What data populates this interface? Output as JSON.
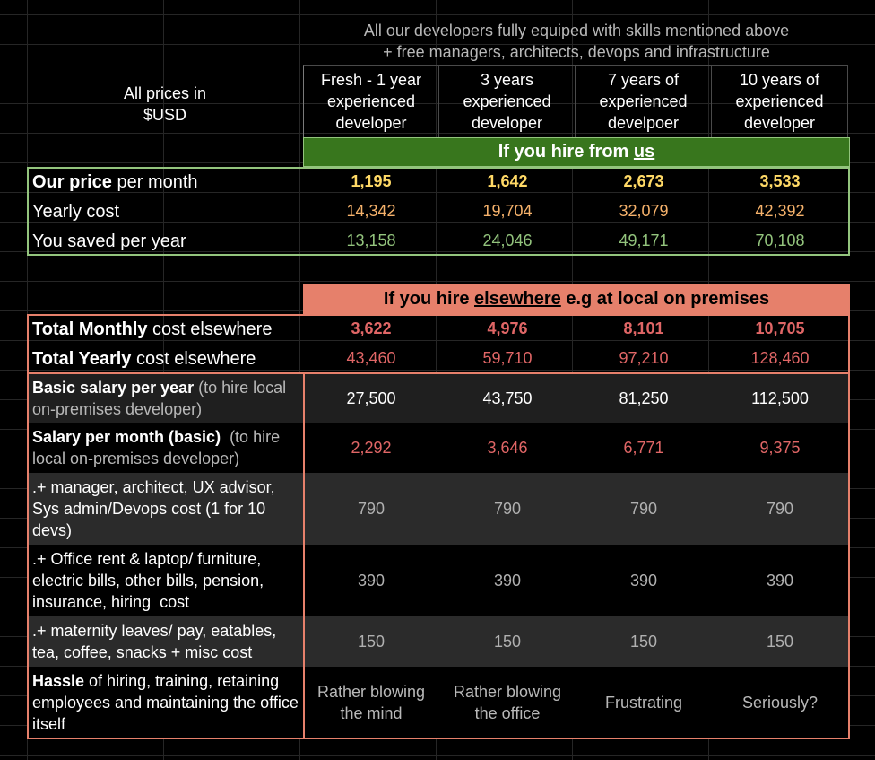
{
  "header": {
    "top_line1": "All our developers fully equiped with skills mentioned above",
    "top_line2": "+ free managers, architects, devops and infrastructure",
    "prices_label_line1": "All prices in",
    "prices_label_line2": "$USD",
    "columns": [
      {
        "line1": "Fresh - 1 year",
        "line2": "experienced",
        "line3": "developer"
      },
      {
        "line1": "3 years",
        "line2": "experienced",
        "line3": "developer"
      },
      {
        "line1": "7 years of",
        "line2": "experienced",
        "line3": "develpoer"
      },
      {
        "line1": "10 years of",
        "line2": "experienced",
        "line3": "developer"
      }
    ]
  },
  "us": {
    "banner_prefix": "If you hire from ",
    "banner_link": "us",
    "rows": [
      {
        "label_bold": "Our price",
        "label_rest": " per month",
        "values": [
          "1,195",
          "1,642",
          "2,673",
          "3,533"
        ]
      },
      {
        "label_bold": "",
        "label_rest": "Yearly cost",
        "values": [
          "14,342",
          "19,704",
          "32,079",
          "42,392"
        ]
      },
      {
        "label_bold": "",
        "label_rest": "You saved per year",
        "values": [
          "13,158",
          "24,046",
          "49,171",
          "70,108"
        ]
      }
    ]
  },
  "elsewhere": {
    "banner_prefix": "If you hire ",
    "banner_link": "elsewhere",
    "banner_suffix": " e.g at local on premises",
    "totals": [
      {
        "label_bold": "Total Monthly",
        "label_rest": " cost elsewhere",
        "values": [
          "3,622",
          "4,976",
          "8,101",
          "10,705"
        ]
      },
      {
        "label_bold": "Total Yearly",
        "label_rest": " cost elsewhere",
        "values": [
          "43,460",
          "59,710",
          "97,210",
          "128,460"
        ]
      }
    ],
    "details": [
      {
        "label_bold": "Basic salary per year",
        "label_rest": " (to hire local on-premises developer)",
        "values": [
          "27,500",
          "43,750",
          "81,250",
          "112,500"
        ]
      },
      {
        "label_bold": "Salary per month (basic)",
        "label_rest": "  (to hire local on-premises developer)",
        "values": [
          "2,292",
          "3,646",
          "6,771",
          "9,375"
        ]
      },
      {
        "label_bold": "",
        "label_rest": ".+ manager, architect, UX advisor, Sys admin/Devops cost (1 for 10 devs)",
        "values": [
          "790",
          "790",
          "790",
          "790"
        ]
      },
      {
        "label_bold": "",
        "label_rest": ".+ Office rent & laptop/ furniture, electric bills, other bills, pension, insurance, hiring  cost",
        "values": [
          "390",
          "390",
          "390",
          "390"
        ]
      },
      {
        "label_bold": "",
        "label_rest": ".+ maternity leaves/ pay, eatables, tea, coffee, snacks + misc cost",
        "values": [
          "150",
          "150",
          "150",
          "150"
        ]
      },
      {
        "label_bold": "Hassle",
        "label_rest": " of hiring, training, retaining employees and maintaining the office itself",
        "values": [
          "Rather blowing the mind",
          "Rather blowing the office",
          "Frustrating",
          "Seriously?"
        ]
      }
    ]
  }
}
